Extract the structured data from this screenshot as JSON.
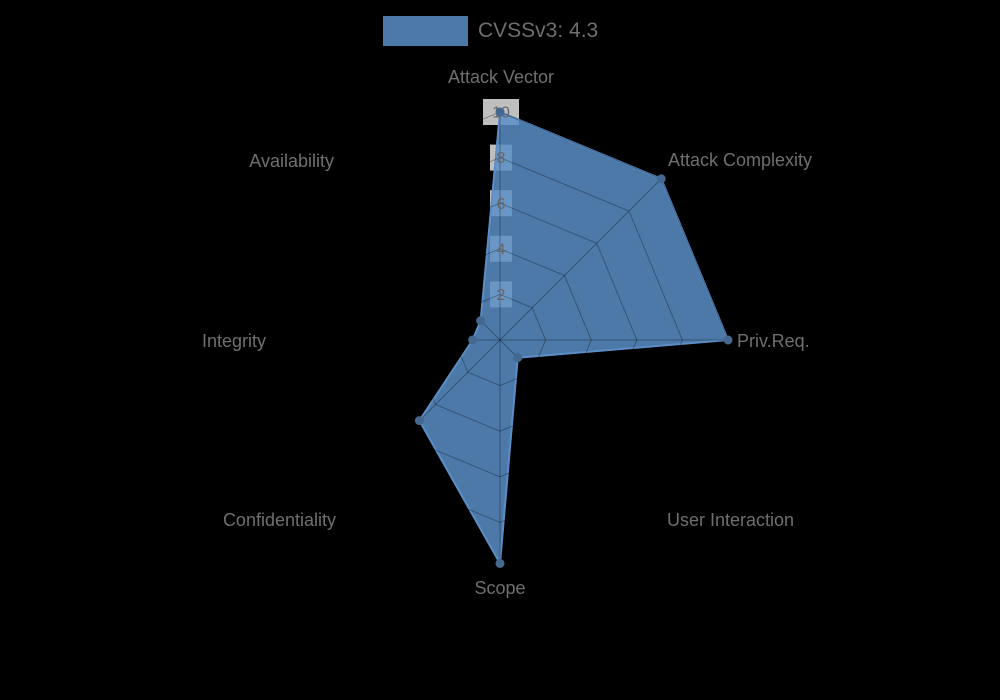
{
  "background_color": "#000000",
  "legend": {
    "label": "CVSSv3: 4.3"
  },
  "chart_data": {
    "type": "radar",
    "title": "CVSSv3: 4.3",
    "axes": [
      "Attack Vector",
      "Attack Complexity",
      "Priv.Req.",
      "User Interaction",
      "Scope",
      "Confidentiality",
      "Integrity",
      "Availability"
    ],
    "series": [
      {
        "name": "CVSSv3: 4.3",
        "values": [
          10,
          10,
          10,
          1.1,
          9.8,
          5,
          1.2,
          1.2
        ]
      }
    ],
    "scale": {
      "min": 0,
      "max": 10,
      "ticks": [
        2,
        4,
        6,
        8,
        10
      ]
    },
    "layout_hints": {
      "start_axis": "top",
      "direction": "clockwise",
      "grid": "straight-web",
      "legend_position": "top",
      "gridlines_visible_only_over_fill": true
    },
    "colors": {
      "series_fill": "rgba(91,142,198,0.85)",
      "series_stroke": "rgba(91,142,198,1)",
      "point": "#44688f",
      "grid": "rgba(0,0,0,0.3)",
      "tick_text": "#666666",
      "tick_backdrop": "rgba(255,255,255,0.75)",
      "label_text": "#6f6f6f"
    }
  }
}
